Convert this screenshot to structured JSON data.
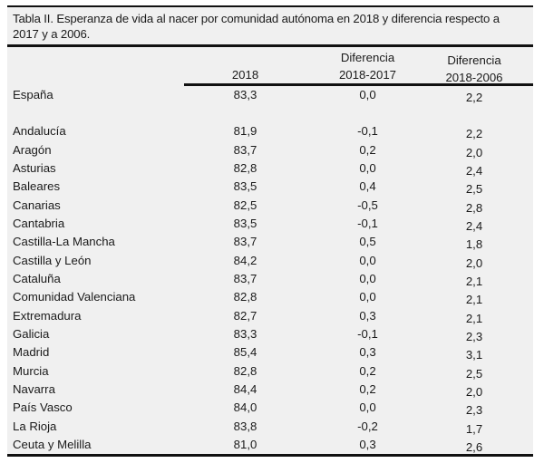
{
  "title": "Tabla II. Esperanza de vida al nacer por comunidad autónoma en 2018 y diferencia respecto a 2017 y a 2006.",
  "table": {
    "header": {
      "region_label": "",
      "year": "2018",
      "diff_2017": [
        "Diferencia",
        "2018-2017"
      ],
      "diff_2006": [
        "Diferencia",
        "2018-2006"
      ]
    },
    "national": {
      "name": "España",
      "y2018": "83,3",
      "d2017": "0,0",
      "d2006": "2,2"
    },
    "rows": [
      {
        "name": "Andalucía",
        "y2018": "81,9",
        "d2017": "-0,1",
        "d2006": "2,2"
      },
      {
        "name": "Aragón",
        "y2018": "83,7",
        "d2017": "0,2",
        "d2006": "2,0"
      },
      {
        "name": "Asturias",
        "y2018": "82,8",
        "d2017": "0,0",
        "d2006": "2,4"
      },
      {
        "name": "Baleares",
        "y2018": "83,5",
        "d2017": "0,4",
        "d2006": "2,5"
      },
      {
        "name": "Canarias",
        "y2018": "82,5",
        "d2017": "-0,5",
        "d2006": "2,8"
      },
      {
        "name": "Cantabria",
        "y2018": "83,5",
        "d2017": "-0,1",
        "d2006": "2,4"
      },
      {
        "name": "Castilla-La Mancha",
        "y2018": "83,7",
        "d2017": "0,5",
        "d2006": "1,8"
      },
      {
        "name": "Castilla y León",
        "y2018": "84,2",
        "d2017": "0,0",
        "d2006": "2,0"
      },
      {
        "name": "Cataluña",
        "y2018": "83,7",
        "d2017": "0,0",
        "d2006": "2,1"
      },
      {
        "name": "Comunidad Valenciana",
        "y2018": "82,8",
        "d2017": "0,0",
        "d2006": "2,1"
      },
      {
        "name": "Extremadura",
        "y2018": "82,7",
        "d2017": "0,3",
        "d2006": "2,1"
      },
      {
        "name": "Galicia",
        "y2018": "83,3",
        "d2017": "-0,1",
        "d2006": "2,3"
      },
      {
        "name": "Madrid",
        "y2018": "85,4",
        "d2017": "0,3",
        "d2006": "3,1"
      },
      {
        "name": "Murcia",
        "y2018": "82,8",
        "d2017": "0,2",
        "d2006": "2,5"
      },
      {
        "name": "Navarra",
        "y2018": "84,4",
        "d2017": "0,2",
        "d2006": "2,0"
      },
      {
        "name": "País Vasco",
        "y2018": "84,0",
        "d2017": "0,0",
        "d2006": "2,3"
      },
      {
        "name": "La Rioja",
        "y2018": "83,8",
        "d2017": "-0,2",
        "d2006": "1,7"
      },
      {
        "name": "Ceuta y Melilla",
        "y2018": "81,0",
        "d2017": "0,3",
        "d2006": "2,6"
      }
    ]
  },
  "colors": {
    "table_background": "#f0f0f0",
    "rule": "#111111",
    "text": "#1a1a1a",
    "page_background": "#ffffff"
  }
}
